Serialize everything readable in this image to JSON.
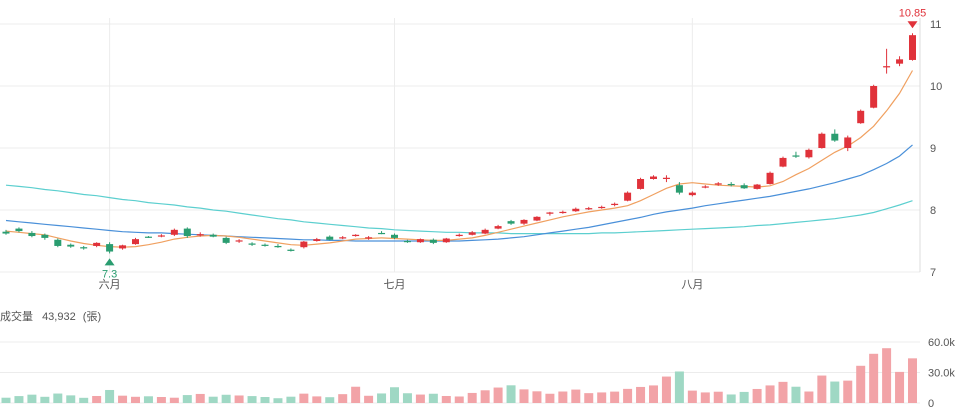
{
  "chart_data": {
    "type": "candlestick",
    "months": [
      {
        "label": "六月",
        "index": 8
      },
      {
        "label": "七月",
        "index": 30
      },
      {
        "label": "八月",
        "index": 53
      }
    ],
    "price_ylim": [
      7,
      11
    ],
    "price_ticks": [
      "7",
      "8",
      "9",
      "10",
      "11"
    ],
    "candles": [
      [
        7.65,
        7.68,
        7.6,
        7.62
      ],
      [
        7.7,
        7.72,
        7.64,
        7.66
      ],
      [
        7.63,
        7.66,
        7.56,
        7.58
      ],
      [
        7.6,
        7.62,
        7.52,
        7.55
      ],
      [
        7.52,
        7.54,
        7.4,
        7.42
      ],
      [
        7.44,
        7.46,
        7.39,
        7.41
      ],
      [
        7.4,
        7.42,
        7.36,
        7.38
      ],
      [
        7.42,
        7.48,
        7.4,
        7.47
      ],
      [
        7.45,
        7.48,
        7.3,
        7.33
      ],
      [
        7.38,
        7.44,
        7.36,
        7.43
      ],
      [
        7.45,
        7.55,
        7.44,
        7.53
      ],
      [
        7.57,
        7.58,
        7.55,
        7.56
      ],
      [
        7.58,
        7.61,
        7.56,
        7.59
      ],
      [
        7.6,
        7.7,
        7.58,
        7.68
      ],
      [
        7.7,
        7.72,
        7.55,
        7.58
      ],
      [
        7.6,
        7.64,
        7.57,
        7.61
      ],
      [
        7.6,
        7.62,
        7.56,
        7.57
      ],
      [
        7.55,
        7.57,
        7.45,
        7.47
      ],
      [
        7.5,
        7.53,
        7.47,
        7.51
      ],
      [
        7.46,
        7.48,
        7.42,
        7.44
      ],
      [
        7.44,
        7.46,
        7.41,
        7.43
      ],
      [
        7.42,
        7.45,
        7.39,
        7.4
      ],
      [
        7.36,
        7.38,
        7.33,
        7.34
      ],
      [
        7.4,
        7.5,
        7.38,
        7.49
      ],
      [
        7.5,
        7.55,
        7.49,
        7.53
      ],
      [
        7.57,
        7.59,
        7.51,
        7.52
      ],
      [
        7.55,
        7.58,
        7.53,
        7.56
      ],
      [
        7.58,
        7.61,
        7.57,
        7.6
      ],
      [
        7.54,
        7.58,
        7.52,
        7.56
      ],
      [
        7.63,
        7.66,
        7.61,
        7.62
      ],
      [
        7.6,
        7.62,
        7.53,
        7.55
      ],
      [
        7.5,
        7.52,
        7.47,
        7.49
      ],
      [
        7.48,
        7.54,
        7.47,
        7.53
      ],
      [
        7.52,
        7.54,
        7.45,
        7.47
      ],
      [
        7.48,
        7.55,
        7.47,
        7.54
      ],
      [
        7.58,
        7.62,
        7.57,
        7.6
      ],
      [
        7.6,
        7.66,
        7.59,
        7.64
      ],
      [
        7.62,
        7.7,
        7.61,
        7.68
      ],
      [
        7.7,
        7.76,
        7.69,
        7.74
      ],
      [
        7.82,
        7.84,
        7.76,
        7.78
      ],
      [
        7.78,
        7.85,
        7.76,
        7.84
      ],
      [
        7.83,
        7.9,
        7.82,
        7.89
      ],
      [
        7.94,
        7.97,
        7.91,
        7.96
      ],
      [
        7.96,
        7.99,
        7.94,
        7.97
      ],
      [
        7.98,
        8.04,
        7.97,
        8.02
      ],
      [
        8.02,
        8.05,
        8.0,
        8.03
      ],
      [
        8.04,
        8.07,
        8.02,
        8.05
      ],
      [
        8.08,
        8.12,
        8.06,
        8.1
      ],
      [
        8.15,
        8.3,
        8.14,
        8.28
      ],
      [
        8.34,
        8.52,
        8.33,
        8.5
      ],
      [
        8.5,
        8.56,
        8.49,
        8.54
      ],
      [
        8.5,
        8.56,
        8.45,
        8.52
      ],
      [
        8.4,
        8.45,
        8.25,
        8.28
      ],
      [
        8.24,
        8.3,
        8.22,
        8.28
      ],
      [
        8.37,
        8.4,
        8.35,
        8.38
      ],
      [
        8.41,
        8.45,
        8.39,
        8.43
      ],
      [
        8.42,
        8.45,
        8.38,
        8.4
      ],
      [
        8.4,
        8.43,
        8.34,
        8.35
      ],
      [
        8.34,
        8.42,
        8.33,
        8.41
      ],
      [
        8.42,
        8.62,
        8.41,
        8.6
      ],
      [
        8.7,
        8.86,
        8.69,
        8.84
      ],
      [
        8.88,
        8.94,
        8.84,
        8.86
      ],
      [
        8.85,
        8.99,
        8.83,
        8.97
      ],
      [
        9.0,
        9.25,
        8.99,
        9.23
      ],
      [
        9.23,
        9.3,
        9.1,
        9.12
      ],
      [
        9.0,
        9.2,
        8.95,
        9.17
      ],
      [
        9.4,
        9.62,
        9.39,
        9.6
      ],
      [
        9.65,
        10.02,
        9.64,
        10.0
      ],
      [
        10.3,
        10.6,
        10.2,
        10.32
      ],
      [
        10.36,
        10.48,
        10.32,
        10.43
      ],
      [
        10.42,
        10.85,
        10.41,
        10.82
      ]
    ],
    "ma_short": [
      7.66,
      7.64,
      7.62,
      7.6,
      7.55,
      7.5,
      7.46,
      7.43,
      7.41,
      7.4,
      7.41,
      7.44,
      7.48,
      7.53,
      7.56,
      7.58,
      7.59,
      7.58,
      7.56,
      7.53,
      7.5,
      7.47,
      7.44,
      7.43,
      7.45,
      7.47,
      7.5,
      7.53,
      7.54,
      7.55,
      7.54,
      7.53,
      7.52,
      7.51,
      7.51,
      7.53,
      7.55,
      7.59,
      7.64,
      7.69,
      7.74,
      7.79,
      7.84,
      7.89,
      7.93,
      7.97,
      8.0,
      8.03,
      8.07,
      8.15,
      8.25,
      8.35,
      8.42,
      8.44,
      8.42,
      8.4,
      8.39,
      8.38,
      8.37,
      8.39,
      8.46,
      8.57,
      8.67,
      8.8,
      8.93,
      9.03,
      9.17,
      9.35,
      9.6,
      9.88,
      10.25
    ],
    "ma_mid": [
      7.83,
      7.81,
      7.79,
      7.77,
      7.75,
      7.73,
      7.71,
      7.69,
      7.67,
      7.65,
      7.64,
      7.63,
      7.63,
      7.62,
      7.61,
      7.6,
      7.59,
      7.58,
      7.57,
      7.56,
      7.55,
      7.54,
      7.53,
      7.52,
      7.52,
      7.51,
      7.51,
      7.5,
      7.5,
      7.5,
      7.5,
      7.5,
      7.5,
      7.5,
      7.5,
      7.5,
      7.51,
      7.52,
      7.53,
      7.55,
      7.57,
      7.6,
      7.63,
      7.66,
      7.69,
      7.72,
      7.76,
      7.8,
      7.84,
      7.88,
      7.93,
      7.97,
      8.0,
      8.03,
      8.07,
      8.1,
      8.13,
      8.16,
      8.19,
      8.22,
      8.26,
      8.3,
      8.34,
      8.39,
      8.44,
      8.5,
      8.56,
      8.65,
      8.75,
      8.87,
      9.05
    ],
    "ma_long": [
      8.4,
      8.38,
      8.36,
      8.33,
      8.31,
      8.28,
      8.25,
      8.23,
      8.2,
      8.17,
      8.15,
      8.12,
      8.1,
      8.08,
      8.05,
      8.03,
      8.0,
      7.98,
      7.95,
      7.92,
      7.89,
      7.86,
      7.84,
      7.81,
      7.79,
      7.77,
      7.75,
      7.73,
      7.71,
      7.7,
      7.68,
      7.67,
      7.66,
      7.65,
      7.64,
      7.64,
      7.63,
      7.63,
      7.63,
      7.62,
      7.62,
      7.62,
      7.62,
      7.62,
      7.62,
      7.62,
      7.63,
      7.63,
      7.64,
      7.65,
      7.66,
      7.67,
      7.68,
      7.69,
      7.7,
      7.71,
      7.72,
      7.73,
      7.75,
      7.76,
      7.78,
      7.8,
      7.82,
      7.84,
      7.86,
      7.89,
      7.92,
      7.96,
      8.02,
      8.08,
      8.15
    ],
    "annotations": {
      "high_label": "10.85",
      "low_label": "7.3",
      "high_index": 70,
      "low_index": 8,
      "high_value": 10.85,
      "low_value": 7.3
    },
    "volume": {
      "title": "成交量",
      "latest": "43,932",
      "unit": "(張)",
      "ylim": [
        0,
        60000
      ],
      "ticks": [
        "0",
        "30.0k",
        "60.0k"
      ],
      "values": [
        5200,
        6800,
        8200,
        6100,
        9300,
        7500,
        5100,
        6900,
        12800,
        7200,
        6100,
        6600,
        5900,
        5200,
        7800,
        8900,
        6200,
        8100,
        7400,
        6800,
        5900,
        4700,
        6200,
        9200,
        6500,
        5700,
        8700,
        16000,
        7100,
        9400,
        15500,
        9600,
        8300,
        9100,
        6900,
        6400,
        9900,
        12500,
        15200,
        17400,
        13400,
        11500,
        9100,
        11300,
        13200,
        9700,
        10400,
        11200,
        13900,
        15800,
        17300,
        26000,
        31000,
        12200,
        10400,
        11100,
        8400,
        10900,
        13800,
        17300,
        20800,
        16000,
        11300,
        27000,
        21100,
        22000,
        36600,
        48400,
        53900,
        30600,
        43932
      ]
    },
    "colors": {
      "up": "#e0323a",
      "down": "#2a9d70",
      "ma_short": "#f0a060",
      "ma_mid": "#4a90d9",
      "ma_long": "#5ccfcf",
      "vol_up": "#f2a3a7",
      "vol_down": "#9fd8c4",
      "grid": "#ececec"
    }
  }
}
